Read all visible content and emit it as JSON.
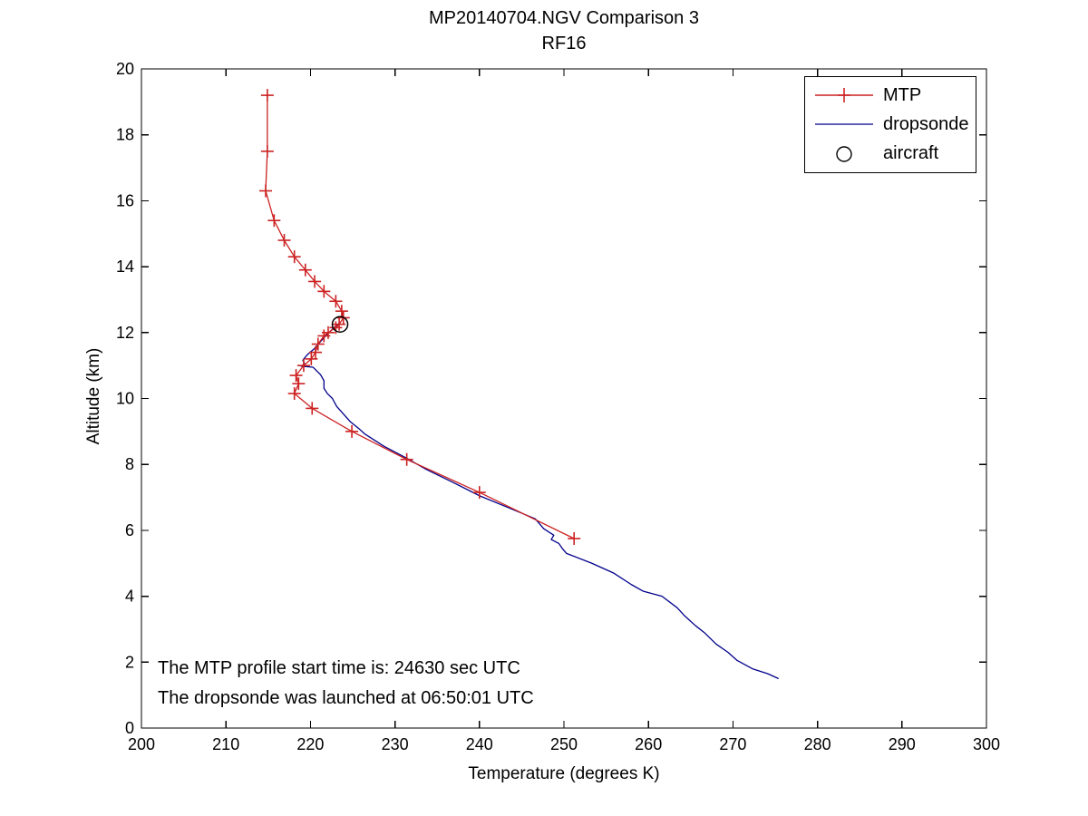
{
  "title": "MP20140704.NGV Comparison 3",
  "subtitle": "RF16",
  "annotations": {
    "line1": "The MTP profile start time is: 24630 sec UTC",
    "line2": "The dropsonde was launched at 06:50:01 UTC"
  },
  "legend": {
    "items": [
      {
        "label": "MTP",
        "marker": "plus-line",
        "color": "#cc2222"
      },
      {
        "label": "dropsonde",
        "marker": "line",
        "color": "#00008b"
      },
      {
        "label": "aircraft",
        "marker": "open-circle",
        "color": "#000000"
      }
    ]
  },
  "chart_data": {
    "type": "line",
    "title": "MP20140704.NGV Comparison 3",
    "subtitle": "RF16",
    "xlabel": "Temperature (degrees K)",
    "ylabel": "Altitude (km)",
    "xlim": [
      200,
      300
    ],
    "ylim": [
      0,
      20
    ],
    "x_ticks": [
      200,
      210,
      220,
      230,
      240,
      250,
      260,
      270,
      280,
      290,
      300
    ],
    "y_ticks": [
      0,
      2,
      4,
      6,
      8,
      10,
      12,
      14,
      16,
      18,
      20
    ],
    "grid": false,
    "legend_position": "top-right",
    "annotations": [
      {
        "text": "The MTP profile start time is: 24630 sec UTC",
        "x": 202,
        "y": 1.8
      },
      {
        "text": "The dropsonde was launched at 06:50:01 UTC",
        "x": 202,
        "y": 0.9
      }
    ],
    "series": [
      {
        "name": "MTP",
        "style": "line-with-plus-markers",
        "color": "#cc2222",
        "points": [
          [
            214.9,
            19.2
          ],
          [
            214.9,
            17.5
          ],
          [
            214.7,
            16.3
          ],
          [
            215.7,
            15.4
          ],
          [
            216.9,
            14.8
          ],
          [
            218.1,
            14.3
          ],
          [
            219.4,
            13.9
          ],
          [
            220.5,
            13.55
          ],
          [
            221.6,
            13.25
          ],
          [
            223.0,
            12.95
          ],
          [
            223.7,
            12.65
          ],
          [
            223.9,
            12.45
          ],
          [
            223.4,
            12.25
          ],
          [
            223.0,
            12.15
          ],
          [
            222.1,
            12.0
          ],
          [
            221.6,
            11.9
          ],
          [
            220.9,
            11.65
          ],
          [
            220.6,
            11.4
          ],
          [
            220.1,
            11.2
          ],
          [
            219.2,
            11.0
          ],
          [
            218.3,
            10.7
          ],
          [
            218.6,
            10.45
          ],
          [
            218.1,
            10.15
          ],
          [
            220.2,
            9.7
          ],
          [
            224.9,
            9.0
          ],
          [
            231.4,
            8.15
          ],
          [
            240.0,
            7.15
          ],
          [
            251.2,
            5.75
          ]
        ]
      },
      {
        "name": "dropsonde",
        "style": "line",
        "color": "#00008b",
        "points": [
          [
            223.5,
            12.3
          ],
          [
            223.0,
            12.2
          ],
          [
            222.4,
            12.05
          ],
          [
            221.8,
            11.9
          ],
          [
            221.2,
            11.73
          ],
          [
            220.5,
            11.52
          ],
          [
            219.6,
            11.32
          ],
          [
            219.1,
            11.16
          ],
          [
            219.3,
            11.05
          ],
          [
            218.9,
            10.98
          ],
          [
            220.3,
            10.95
          ],
          [
            221.2,
            10.72
          ],
          [
            221.6,
            10.54
          ],
          [
            221.6,
            10.31
          ],
          [
            222.0,
            10.15
          ],
          [
            222.6,
            10.0
          ],
          [
            223.1,
            9.76
          ],
          [
            223.9,
            9.53
          ],
          [
            224.7,
            9.3
          ],
          [
            225.8,
            9.07
          ],
          [
            226.4,
            8.93
          ],
          [
            228.7,
            8.55
          ],
          [
            231.3,
            8.2
          ],
          [
            233.7,
            7.85
          ],
          [
            236.9,
            7.45
          ],
          [
            240.0,
            7.05
          ],
          [
            243.3,
            6.7
          ],
          [
            246.6,
            6.35
          ],
          [
            247.6,
            6.05
          ],
          [
            248.8,
            5.85
          ],
          [
            248.5,
            5.72
          ],
          [
            249.4,
            5.6
          ],
          [
            249.8,
            5.45
          ],
          [
            250.3,
            5.3
          ],
          [
            253.3,
            5.0
          ],
          [
            255.9,
            4.7
          ],
          [
            258.0,
            4.35
          ],
          [
            259.4,
            4.15
          ],
          [
            261.6,
            4.0
          ],
          [
            263.4,
            3.65
          ],
          [
            264.3,
            3.4
          ],
          [
            265.6,
            3.1
          ],
          [
            266.6,
            2.9
          ],
          [
            268.0,
            2.55
          ],
          [
            269.4,
            2.3
          ],
          [
            270.5,
            2.05
          ],
          [
            272.3,
            1.8
          ],
          [
            274.1,
            1.65
          ],
          [
            275.4,
            1.5
          ]
        ]
      },
      {
        "name": "aircraft",
        "style": "open-circle-marker",
        "color": "#000000",
        "points": [
          [
            223.5,
            12.25
          ]
        ]
      }
    ]
  }
}
